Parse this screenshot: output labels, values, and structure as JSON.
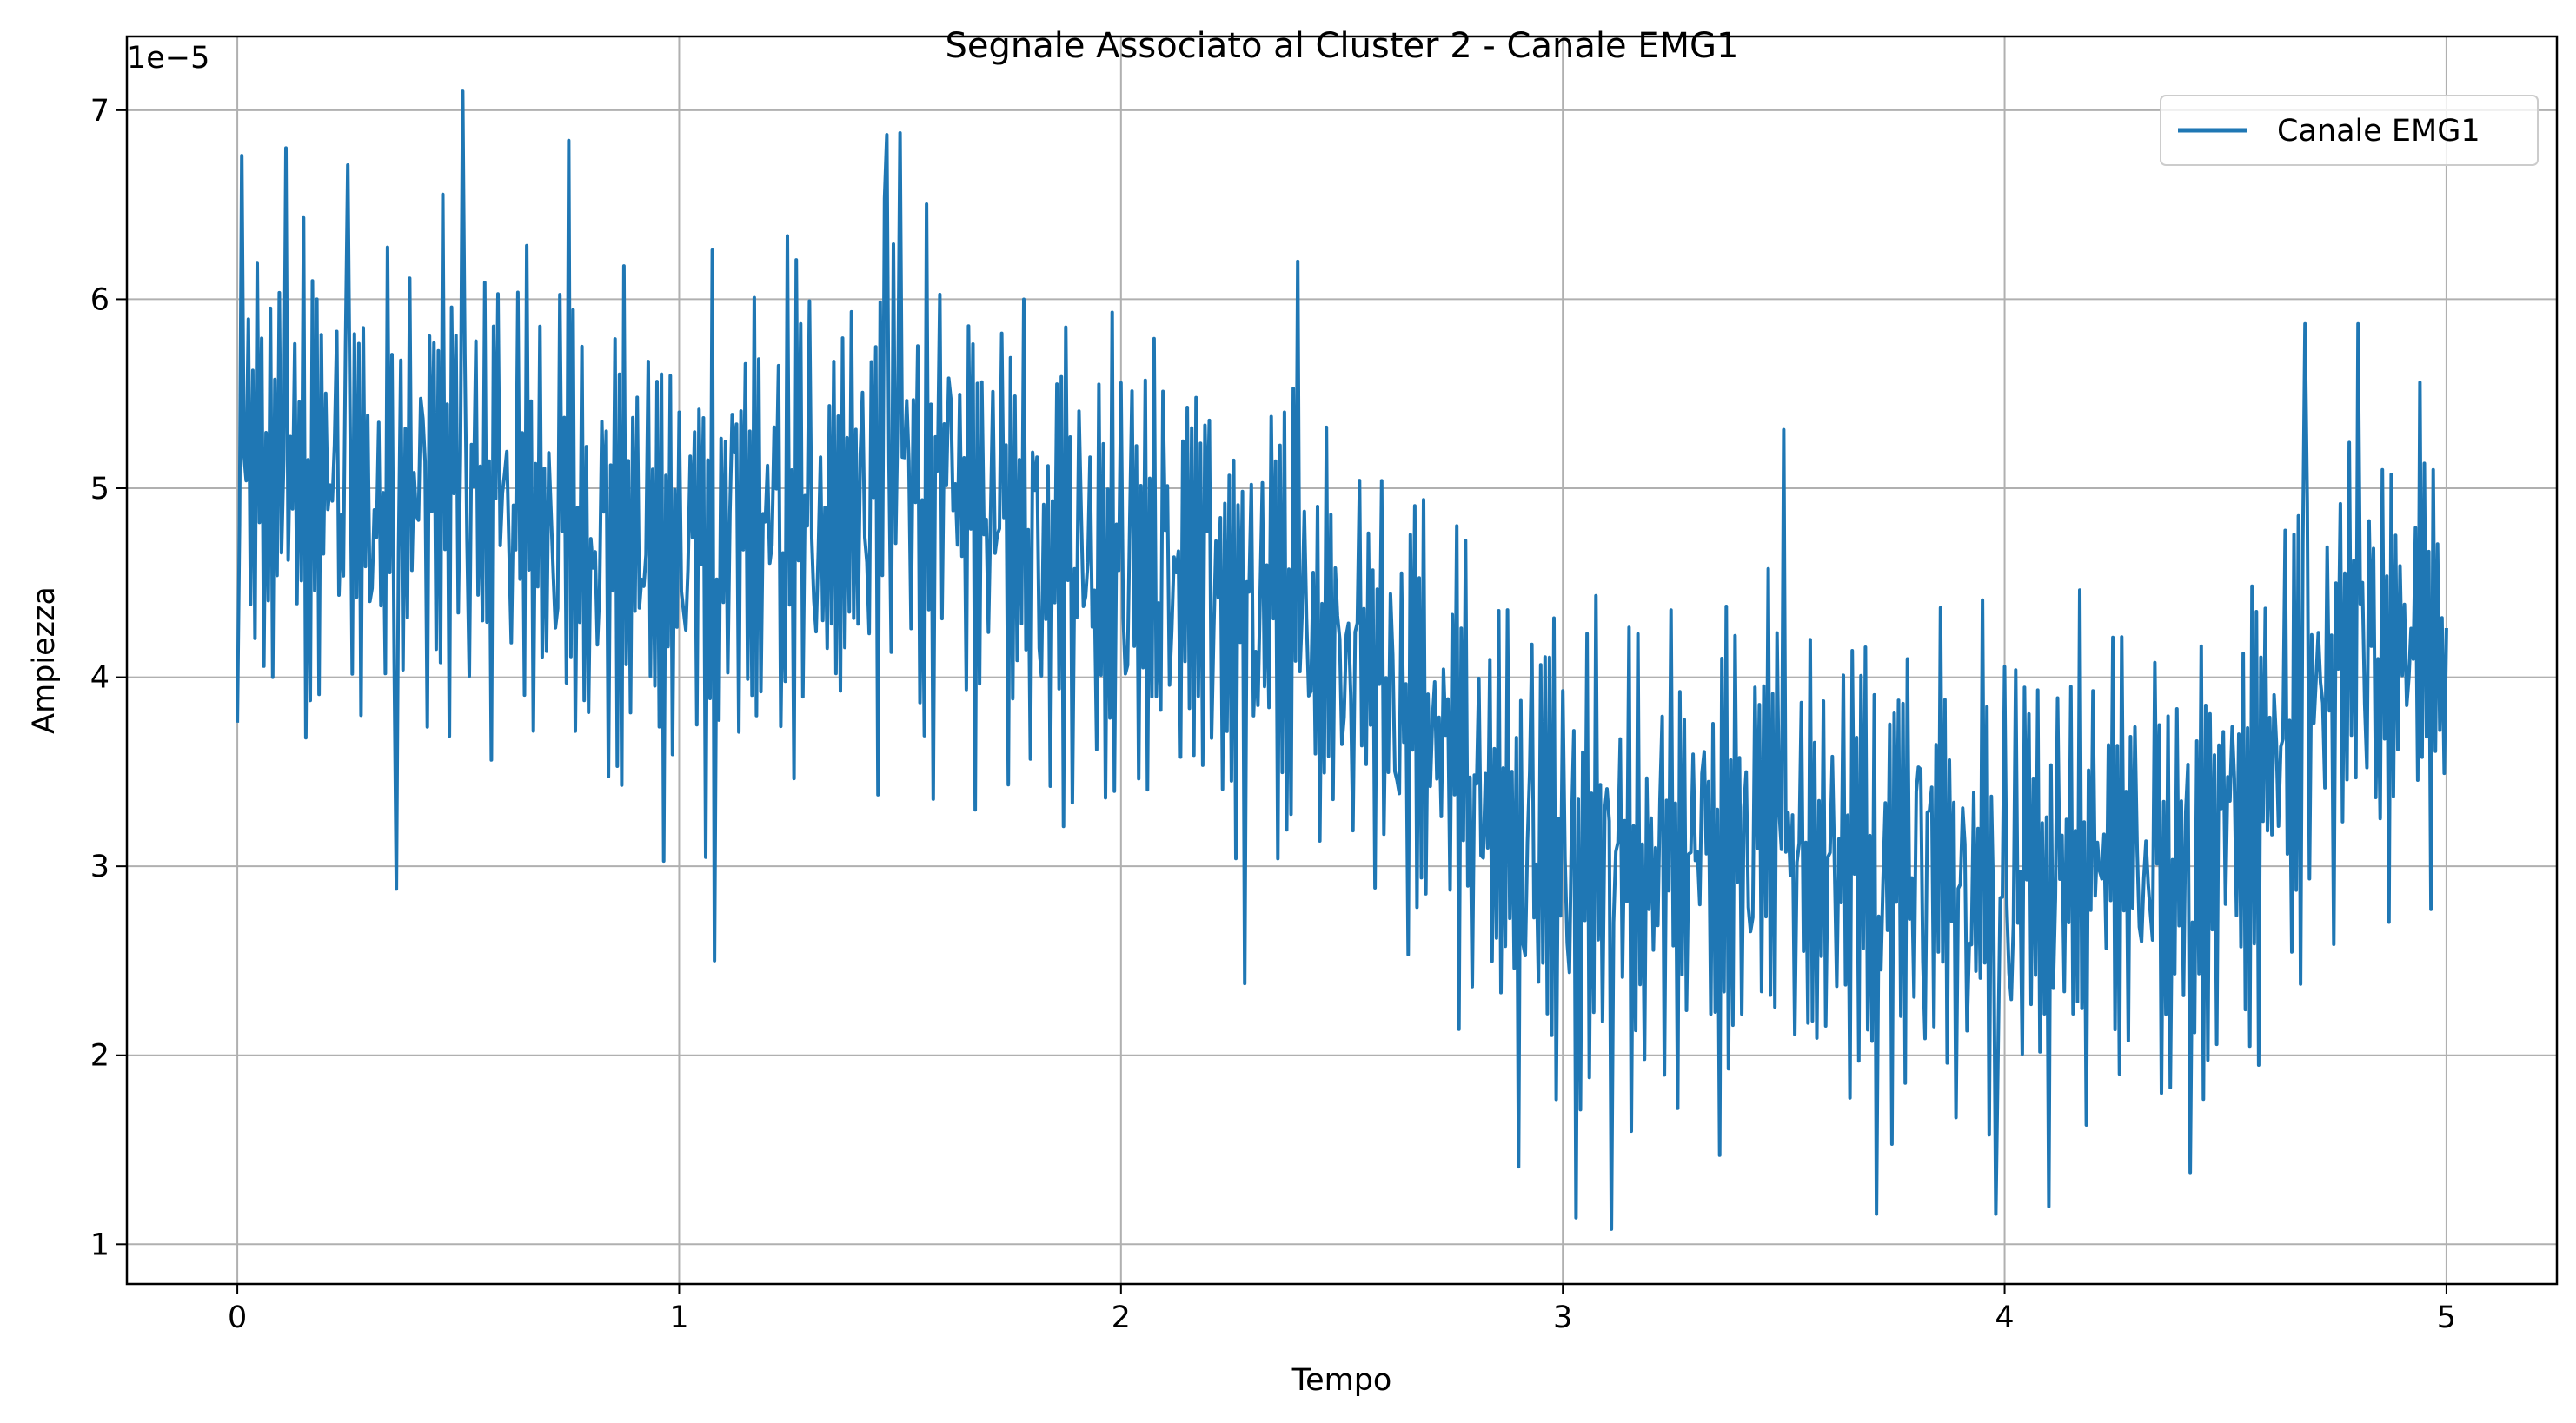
{
  "chart_data": {
    "type": "line",
    "title": "Segnale Associato al Cluster 2 - Canale EMG1",
    "xlabel": "Tempo",
    "ylabel": "Ampiezza",
    "offset_text": "1e−5",
    "xlim": [
      -0.25,
      5.25
    ],
    "ylim": [
      0.79,
      7.39
    ],
    "y_scale_factor": 1e-05,
    "xticks": [
      0,
      1,
      2,
      3,
      4,
      5
    ],
    "xtick_labels": [
      "0",
      "1",
      "2",
      "3",
      "4",
      "5"
    ],
    "yticks": [
      1,
      2,
      3,
      4,
      5,
      6,
      7
    ],
    "ytick_labels": [
      "1",
      "2",
      "3",
      "4",
      "5",
      "6",
      "7"
    ],
    "grid": true,
    "legend_position": "top-right",
    "series": [
      {
        "name": "Canale EMG1",
        "color": "#1f77b4",
        "x_start": 0,
        "x_step": 0.005,
        "envelope": {
          "x": [
            0,
            0.5,
            1.0,
            1.5,
            2.0,
            2.5,
            3.0,
            3.5,
            4.0,
            4.5,
            4.75,
            5.0
          ],
          "upper": [
            6.6,
            6.6,
            6.2,
            6.6,
            6.1,
            5.6,
            4.4,
            4.7,
            4.5,
            4.5,
            5.6,
            5.4
          ],
          "lower": [
            3.4,
            3.4,
            3.0,
            3.4,
            3.1,
            2.8,
            1.4,
            1.5,
            1.5,
            1.6,
            2.6,
            2.8
          ]
        },
        "peaks": [
          [
            0.01,
            6.76
          ],
          [
            0.11,
            6.8
          ],
          [
            0.25,
            6.71
          ],
          [
            0.51,
            7.1
          ],
          [
            0.75,
            6.84
          ],
          [
            1.47,
            6.87
          ],
          [
            1.5,
            6.88
          ],
          [
            2.4,
            6.2
          ],
          [
            3.5,
            5.31
          ],
          [
            4.68,
            5.87
          ],
          [
            4.8,
            5.87
          ],
          [
            4.94,
            5.56
          ]
        ],
        "troughs": [
          [
            0.36,
            2.88
          ],
          [
            1.08,
            2.5
          ],
          [
            2.28,
            2.38
          ],
          [
            2.9,
            1.41
          ],
          [
            3.03,
            1.14
          ],
          [
            3.11,
            1.08
          ],
          [
            3.71,
            1.16
          ],
          [
            3.98,
            1.16
          ],
          [
            4.1,
            1.2
          ],
          [
            4.42,
            1.38
          ]
        ]
      }
    ]
  }
}
